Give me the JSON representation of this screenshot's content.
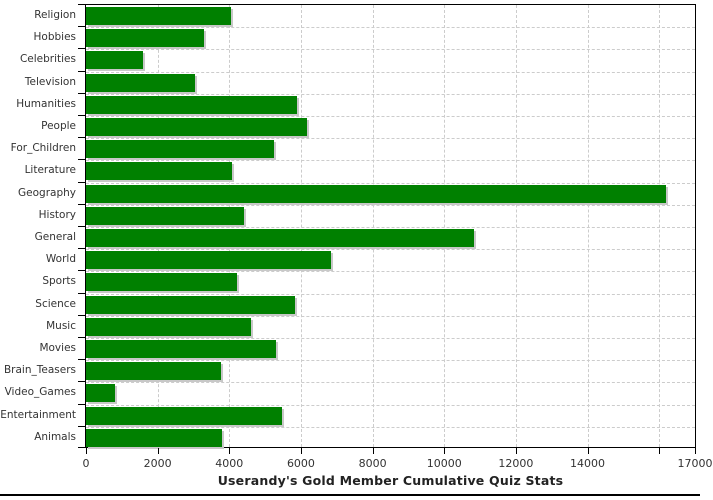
{
  "chart_data": {
    "type": "bar",
    "orientation": "horizontal",
    "title": "Userandy's Gold Member Cumulative Quiz Stats",
    "categories": [
      "Religion",
      "Hobbies",
      "Celebrities",
      "Television",
      "Humanities",
      "People",
      "For_Children",
      "Literature",
      "Geography",
      "History",
      "General",
      "World",
      "Sports",
      "Science",
      "Music",
      "Movies",
      "Brain_Teasers",
      "Video_Games",
      "Entertainment",
      "Animals"
    ],
    "values": [
      4050,
      3300,
      1590,
      3040,
      5890,
      6160,
      5240,
      4070,
      16200,
      4420,
      10840,
      6830,
      4220,
      5830,
      4610,
      5290,
      3770,
      810,
      5470,
      3810
    ],
    "xlabel": "",
    "ylabel": "",
    "xlim": [
      0,
      17000
    ],
    "x_ticks": [
      0,
      2000,
      4000,
      6000,
      8000,
      10000,
      12000,
      14000,
      16000,
      17000
    ],
    "x_tick_labels": [
      "0",
      "2000",
      "4000",
      "6000",
      "8000",
      "10000",
      "12000",
      "14000",
      "",
      "17000"
    ],
    "grid": true,
    "legend": "none",
    "bar_color": "#008000",
    "bar_shadow_color": "#c8c8c8",
    "gridline_color": "#cccccc",
    "axis_color": "#000000",
    "label_color": "#333333",
    "title_color": "#222222"
  }
}
